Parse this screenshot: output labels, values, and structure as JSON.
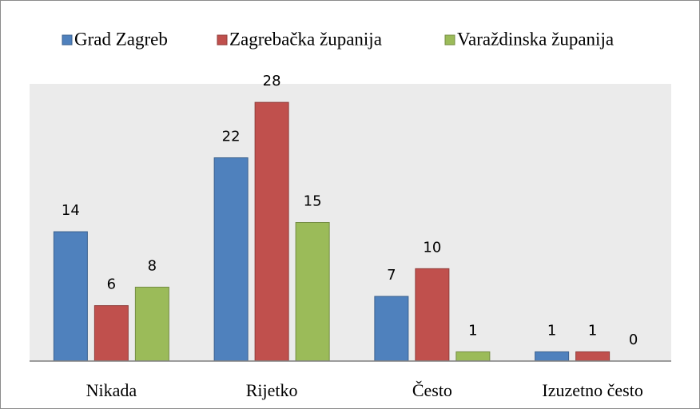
{
  "chart_data": {
    "type": "bar",
    "categories": [
      "Nikada",
      "Rijetko",
      "Često",
      "Izuzetno često"
    ],
    "series": [
      {
        "name": "Grad Zagreb",
        "color": "#4f81bd",
        "values": [
          14,
          22,
          7,
          1
        ]
      },
      {
        "name": "Zagrebačka županija",
        "color": "#c0504d",
        "values": [
          6,
          28,
          10,
          1
        ]
      },
      {
        "name": "Varaždinska županija",
        "color": "#9bbb59",
        "values": [
          8,
          15,
          1,
          0
        ]
      }
    ],
    "ylim": [
      0,
      30
    ],
    "legend": "top"
  }
}
